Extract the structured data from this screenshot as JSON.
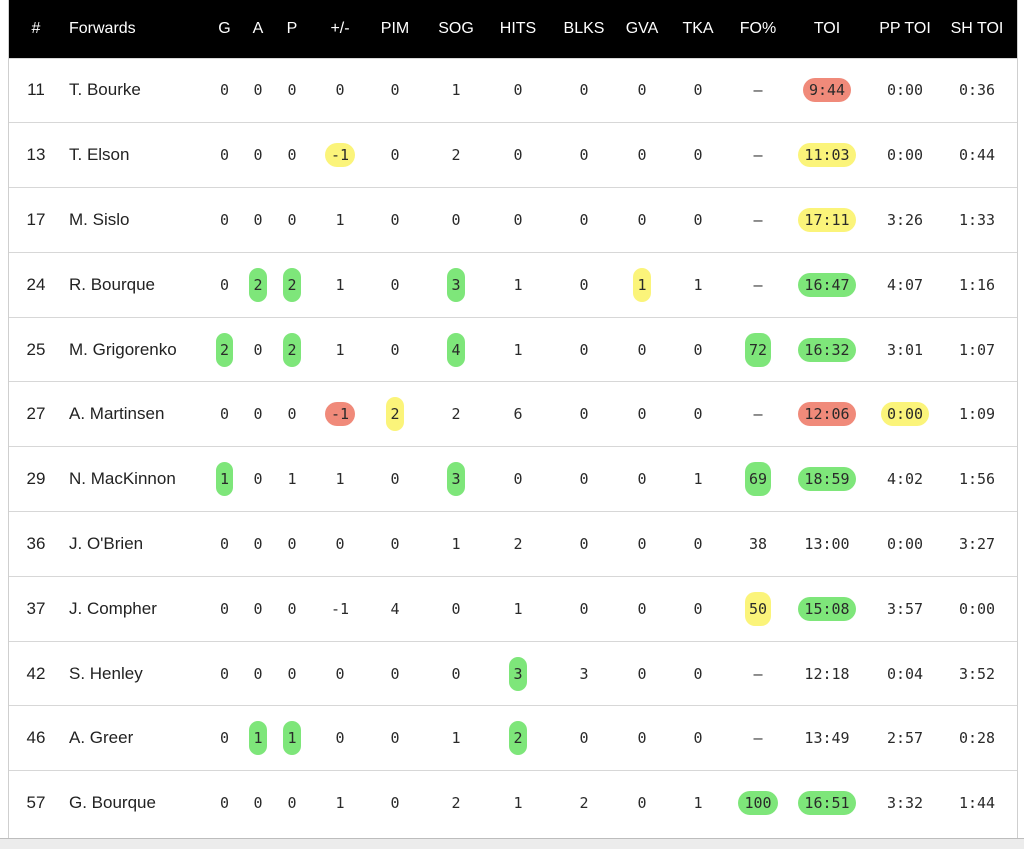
{
  "header": [
    "#",
    "Forwards",
    "G",
    "A",
    "P",
    "+/-",
    "PIM",
    "SOG",
    "HITS",
    "BLKS",
    "GVA",
    "TKA",
    "FO%",
    "TOI",
    "PP TOI",
    "SH TOI"
  ],
  "colors": {
    "green": "#7ee67a",
    "yellow": "#fbf47a",
    "red": "#f08a7a"
  },
  "rows": [
    {
      "num": "11",
      "name": "T. Bourke",
      "stats": [
        "0",
        "0",
        "0",
        "0",
        "0",
        "1",
        "0",
        "0",
        "0",
        "0",
        "–",
        "9:44",
        "0:00",
        "0:36"
      ],
      "hl": {
        "11": "red"
      }
    },
    {
      "num": "13",
      "name": "T. Elson",
      "stats": [
        "0",
        "0",
        "0",
        "-1",
        "0",
        "2",
        "0",
        "0",
        "0",
        "0",
        "–",
        "11:03",
        "0:00",
        "0:44"
      ],
      "hl": {
        "3": "yellow",
        "11": "yellow"
      }
    },
    {
      "num": "17",
      "name": "M. Sislo",
      "stats": [
        "0",
        "0",
        "0",
        "1",
        "0",
        "0",
        "0",
        "0",
        "0",
        "0",
        "–",
        "17:11",
        "3:26",
        "1:33"
      ],
      "hl": {
        "11": "yellow"
      }
    },
    {
      "num": "24",
      "name": "R. Bourque",
      "stats": [
        "0",
        "2",
        "2",
        "1",
        "0",
        "3",
        "1",
        "0",
        "1",
        "1",
        "–",
        "16:47",
        "4:07",
        "1:16"
      ],
      "hl": {
        "1": "green",
        "2": "green",
        "5": "green",
        "8": "yellow",
        "11": "green"
      }
    },
    {
      "num": "25",
      "name": "M. Grigorenko",
      "stats": [
        "2",
        "0",
        "2",
        "1",
        "0",
        "4",
        "1",
        "0",
        "0",
        "0",
        "72",
        "16:32",
        "3:01",
        "1:07"
      ],
      "hl": {
        "0": "green",
        "2": "green",
        "5": "green",
        "10": "green",
        "11": "green"
      }
    },
    {
      "num": "27",
      "name": "A. Martinsen",
      "stats": [
        "0",
        "0",
        "0",
        "-1",
        "2",
        "2",
        "6",
        "0",
        "0",
        "0",
        "–",
        "12:06",
        "0:00",
        "1:09"
      ],
      "hl": {
        "3": "red",
        "4": "yellow",
        "11": "red",
        "12": "yellow"
      }
    },
    {
      "num": "29",
      "name": "N. MacKinnon",
      "stats": [
        "1",
        "0",
        "1",
        "1",
        "0",
        "3",
        "0",
        "0",
        "0",
        "1",
        "69",
        "18:59",
        "4:02",
        "1:56"
      ],
      "hl": {
        "0": "green",
        "5": "green",
        "10": "green",
        "11": "green"
      }
    },
    {
      "num": "36",
      "name": "J. O'Brien",
      "stats": [
        "0",
        "0",
        "0",
        "0",
        "0",
        "1",
        "2",
        "0",
        "0",
        "0",
        "38",
        "13:00",
        "0:00",
        "3:27"
      ],
      "hl": {}
    },
    {
      "num": "37",
      "name": "J. Compher",
      "stats": [
        "0",
        "0",
        "0",
        "-1",
        "4",
        "0",
        "1",
        "0",
        "0",
        "0",
        "50",
        "15:08",
        "3:57",
        "0:00"
      ],
      "hl": {
        "10": "yellow",
        "11": "green"
      }
    },
    {
      "num": "42",
      "name": "S. Henley",
      "stats": [
        "0",
        "0",
        "0",
        "0",
        "0",
        "0",
        "3",
        "3",
        "0",
        "0",
        "–",
        "12:18",
        "0:04",
        "3:52"
      ],
      "hl": {
        "6": "green"
      }
    },
    {
      "num": "46",
      "name": "A. Greer",
      "stats": [
        "0",
        "1",
        "1",
        "0",
        "0",
        "1",
        "2",
        "0",
        "0",
        "0",
        "–",
        "13:49",
        "2:57",
        "0:28"
      ],
      "hl": {
        "1": "green",
        "2": "green",
        "6": "green"
      }
    },
    {
      "num": "57",
      "name": "G. Bourque",
      "stats": [
        "0",
        "0",
        "0",
        "1",
        "0",
        "2",
        "1",
        "2",
        "0",
        "1",
        "100",
        "16:51",
        "3:32",
        "1:44"
      ],
      "hl": {
        "10": "green",
        "11": "green"
      }
    }
  ]
}
